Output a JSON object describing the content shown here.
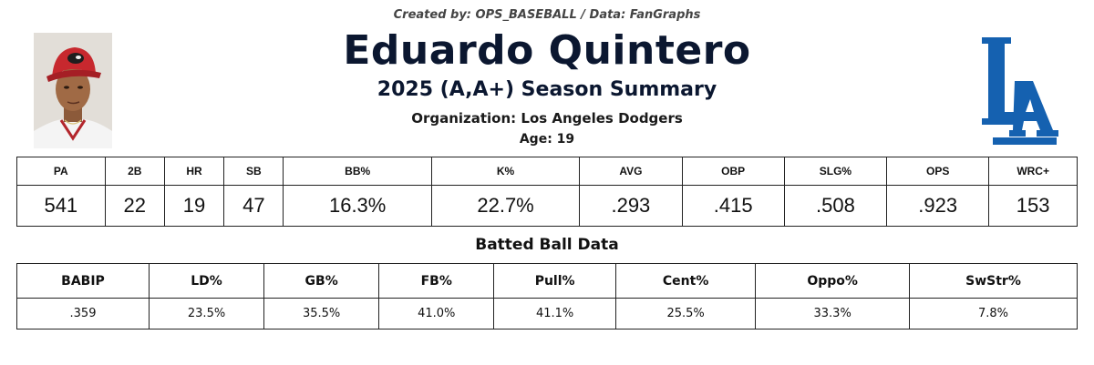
{
  "header": {
    "credit": "Created by: OPS_BASEBALL / Data: FanGraphs",
    "player_name": "Eduardo Quintero",
    "season_summary": "2025 (A,A+) Season Summary",
    "organization": "Organization: Los Angeles Dodgers",
    "age": "Age: 19"
  },
  "logo": {
    "team_colors": {
      "blue": "#1561b0"
    }
  },
  "photo": {
    "cap_color": "#c7282e",
    "skin": "#a06a45"
  },
  "stats": {
    "headers": [
      "PA",
      "2B",
      "HR",
      "SB",
      "BB%",
      "K%",
      "AVG",
      "OBP",
      "SLG%",
      "OPS",
      "WRC+"
    ],
    "values": [
      "541",
      "22",
      "19",
      "47",
      "16.3%",
      "22.7%",
      ".293",
      ".415",
      ".508",
      ".923",
      "153"
    ]
  },
  "batted_ball": {
    "title": "Batted Ball Data",
    "headers": [
      "BABIP",
      "LD%",
      "GB%",
      "FB%",
      "Pull%",
      "Cent%",
      "Oppo%",
      "SwStr%"
    ],
    "values": [
      ".359",
      "23.5%",
      "35.5%",
      "41.0%",
      "41.1%",
      "25.5%",
      "33.3%",
      "7.8%"
    ]
  }
}
